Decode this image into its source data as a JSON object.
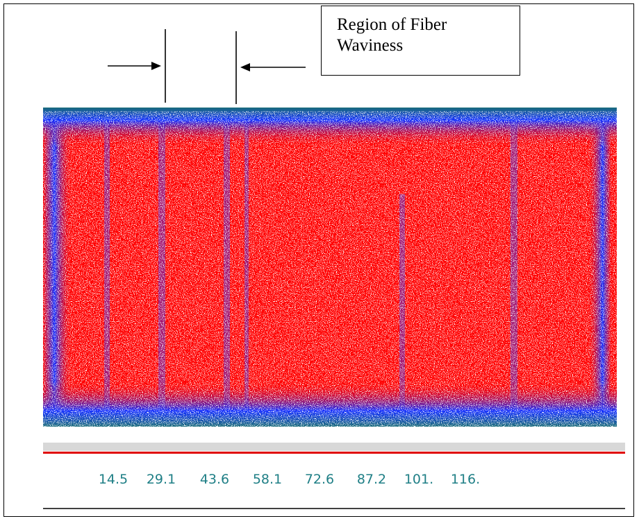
{
  "annotation": "Region of Fiber Waviness",
  "axis": {
    "labels": [
      "14.5",
      "29.1",
      "43.6",
      "58.1",
      "72.6",
      "87.2",
      "101.",
      "116."
    ]
  }
}
